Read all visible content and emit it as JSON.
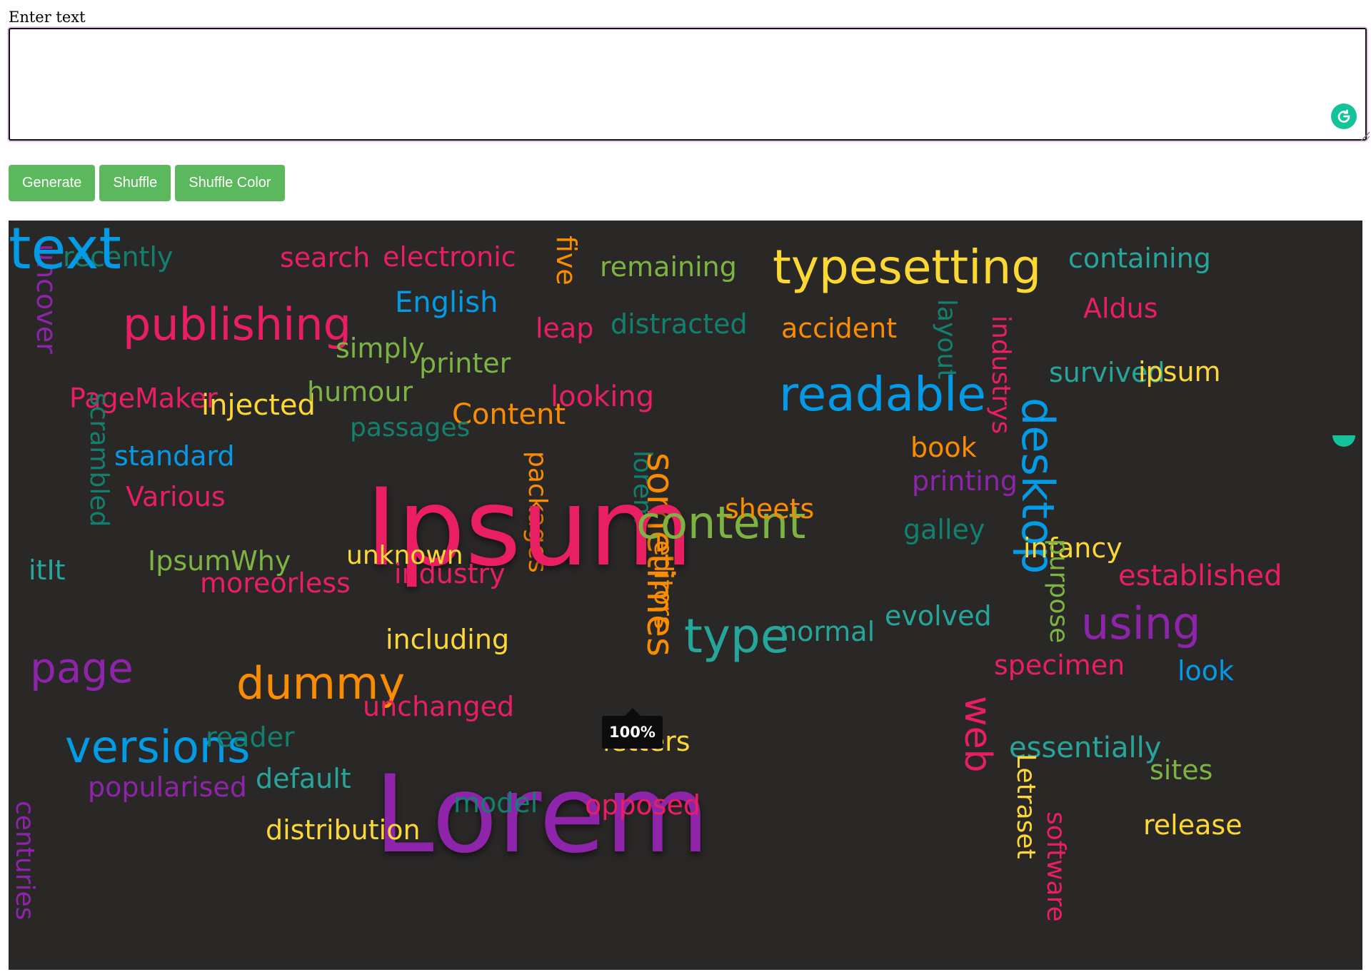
{
  "input": {
    "label": "Enter text",
    "value": "",
    "placeholder": ""
  },
  "buttons": {
    "generate": "Generate",
    "shuffle": "Shuffle",
    "shuffle_color": "Shuffle Color"
  },
  "tooltip": "100%",
  "icons": {
    "grammarly": "grammarly-icon",
    "resize": "resize-handle-icon"
  },
  "colors": {
    "button": "#5cb85c",
    "cloud_background": "#2a2827",
    "grammarly": "#15c39a"
  },
  "word_cloud": [
    {
      "text": "uncover",
      "color": "#8e24aa",
      "size": 38,
      "rotate": 90
    },
    {
      "text": "recently",
      "color": "#12806f",
      "size": 38,
      "rotate": 0
    },
    {
      "text": "search",
      "color": "#e91e63",
      "size": 38,
      "rotate": 0
    },
    {
      "text": "electronic",
      "color": "#e91e63",
      "size": 38,
      "rotate": 0
    },
    {
      "text": "five",
      "color": "#fb8c00",
      "size": 38,
      "rotate": 90
    },
    {
      "text": "remaining",
      "color": "#7cb342",
      "size": 38,
      "rotate": 0
    },
    {
      "text": "typesetting",
      "color": "#fdd835",
      "size": 66,
      "rotate": 0
    },
    {
      "text": "containing",
      "color": "#26a69a",
      "size": 38,
      "rotate": 0
    },
    {
      "text": "English",
      "color": "#039be5",
      "size": 40,
      "rotate": 0
    },
    {
      "text": "publishing",
      "color": "#e91e63",
      "size": 62,
      "rotate": 0
    },
    {
      "text": "simply",
      "color": "#7cb342",
      "size": 38,
      "rotate": 0
    },
    {
      "text": "printer",
      "color": "#7cb342",
      "size": 38,
      "rotate": 0
    },
    {
      "text": "leap",
      "color": "#e91e63",
      "size": 38,
      "rotate": 0
    },
    {
      "text": "distracted",
      "color": "#12806f",
      "size": 38,
      "rotate": 0
    },
    {
      "text": "accident",
      "color": "#fb8c00",
      "size": 38,
      "rotate": 0
    },
    {
      "text": "layout",
      "color": "#12806f",
      "size": 36,
      "rotate": 90
    },
    {
      "text": "industrys",
      "color": "#e91e63",
      "size": 36,
      "rotate": 90
    },
    {
      "text": "Aldus",
      "color": "#e91e63",
      "size": 38,
      "rotate": 0
    },
    {
      "text": "PageMaker",
      "color": "#e91e63",
      "size": 38,
      "rotate": 0
    },
    {
      "text": "scrambled",
      "color": "#12806f",
      "size": 36,
      "rotate": 90
    },
    {
      "text": "injected",
      "color": "#fdd835",
      "size": 40,
      "rotate": 0
    },
    {
      "text": "humour",
      "color": "#7cb342",
      "size": 38,
      "rotate": 0
    },
    {
      "text": "Content",
      "color": "#fb8c00",
      "size": 40,
      "rotate": 0
    },
    {
      "text": "looking",
      "color": "#e91e63",
      "size": 40,
      "rotate": 0
    },
    {
      "text": "readable",
      "color": "#039be5",
      "size": 66,
      "rotate": 0
    },
    {
      "text": "survived",
      "color": "#26a69a",
      "size": 38,
      "rotate": 0
    },
    {
      "text": "ipsum",
      "color": "#fdd835",
      "size": 38,
      "rotate": 0
    },
    {
      "text": "standard",
      "color": "#039be5",
      "size": 38,
      "rotate": 0
    },
    {
      "text": "passages",
      "color": "#12806f",
      "size": 36,
      "rotate": 0
    },
    {
      "text": "packages",
      "color": "#fb8c00",
      "size": 36,
      "rotate": 90
    },
    {
      "text": "lorem",
      "color": "#12806f",
      "size": 36,
      "rotate": 90
    },
    {
      "text": "sometimes",
      "color": "#fb8c00",
      "size": 52,
      "rotate": 90
    },
    {
      "text": "printing",
      "color": "#8e24aa",
      "size": 38,
      "rotate": 0
    },
    {
      "text": "desktop",
      "color": "#039be5",
      "size": 62,
      "rotate": 90
    },
    {
      "text": "book",
      "color": "#fb8c00",
      "size": 38,
      "rotate": 0
    },
    {
      "text": "Ipsum",
      "color": "#e91e63",
      "size": 150,
      "rotate": 0
    },
    {
      "text": "Various",
      "color": "#e91e63",
      "size": 38,
      "rotate": 0
    },
    {
      "text": "content",
      "color": "#7cb342",
      "size": 62,
      "rotate": 0
    },
    {
      "text": "sheets",
      "color": "#fb8c00",
      "size": 38,
      "rotate": 0
    },
    {
      "text": "galley",
      "color": "#12806f",
      "size": 38,
      "rotate": 0
    },
    {
      "text": "infancy",
      "color": "#fdd835",
      "size": 38,
      "rotate": 0
    },
    {
      "text": "purpose",
      "color": "#7cb342",
      "size": 36,
      "rotate": 90
    },
    {
      "text": "itIt",
      "color": "#26a69a",
      "size": 38,
      "rotate": 0
    },
    {
      "text": "IpsumWhy",
      "color": "#7cb342",
      "size": 38,
      "rotate": 0
    },
    {
      "text": "unknown",
      "color": "#fdd835",
      "size": 36,
      "rotate": 0
    },
    {
      "text": "editors",
      "color": "#fb8c00",
      "size": 36,
      "rotate": 90
    },
    {
      "text": "industry",
      "color": "#e91e63",
      "size": 38,
      "rotate": 0
    },
    {
      "text": "established",
      "color": "#e91e63",
      "size": 40,
      "rotate": 0
    },
    {
      "text": "moreorless",
      "color": "#e91e63",
      "size": 38,
      "rotate": 0
    },
    {
      "text": "type",
      "color": "#26a69a",
      "size": 66,
      "rotate": 0
    },
    {
      "text": "normal",
      "color": "#26a69a",
      "size": 38,
      "rotate": 0
    },
    {
      "text": "evolved",
      "color": "#26a69a",
      "size": 38,
      "rotate": 0
    },
    {
      "text": "using",
      "color": "#8e24aa",
      "size": 62,
      "rotate": 0
    },
    {
      "text": "including",
      "color": "#fdd835",
      "size": 38,
      "rotate": 0
    },
    {
      "text": "page",
      "color": "#8e24aa",
      "size": 58,
      "rotate": 0
    },
    {
      "text": "dummy",
      "color": "#fb8c00",
      "size": 62,
      "rotate": 0
    },
    {
      "text": "specimen",
      "color": "#e91e63",
      "size": 38,
      "rotate": 0
    },
    {
      "text": "look",
      "color": "#039be5",
      "size": 38,
      "rotate": 0
    },
    {
      "text": "web",
      "color": "#e91e63",
      "size": 52,
      "rotate": 90
    },
    {
      "text": "unchanged",
      "color": "#e91e63",
      "size": 38,
      "rotate": 0
    },
    {
      "text": "versions",
      "color": "#039be5",
      "size": 62,
      "rotate": 0
    },
    {
      "text": "reader",
      "color": "#12806f",
      "size": 38,
      "rotate": 0
    },
    {
      "text": "essentially",
      "color": "#26a69a",
      "size": 40,
      "rotate": 0
    },
    {
      "text": "letters",
      "color": "#fdd835",
      "size": 38,
      "rotate": 0
    },
    {
      "text": "Lorem",
      "color": "#8e24aa",
      "size": 150,
      "rotate": 0
    },
    {
      "text": "sites",
      "color": "#7cb342",
      "size": 38,
      "rotate": 0
    },
    {
      "text": "popularised",
      "color": "#8e24aa",
      "size": 38,
      "rotate": 0
    },
    {
      "text": "default",
      "color": "#26a69a",
      "size": 38,
      "rotate": 0
    },
    {
      "text": "Letraset",
      "color": "#fdd835",
      "size": 36,
      "rotate": 90
    },
    {
      "text": "centuries",
      "color": "#8e24aa",
      "size": 36,
      "rotate": 90
    },
    {
      "text": "model",
      "color": "#12806f",
      "size": 38,
      "rotate": 0
    },
    {
      "text": "opposed",
      "color": "#e91e63",
      "size": 38,
      "rotate": 0
    },
    {
      "text": "software",
      "color": "#e91e63",
      "size": 36,
      "rotate": 90
    },
    {
      "text": "release",
      "color": "#fdd835",
      "size": 38,
      "rotate": 0
    },
    {
      "text": "distribution",
      "color": "#fdd835",
      "size": 38,
      "rotate": 0
    },
    {
      "text": "text",
      "color": "#039be5",
      "size": 80,
      "rotate": 0
    }
  ]
}
